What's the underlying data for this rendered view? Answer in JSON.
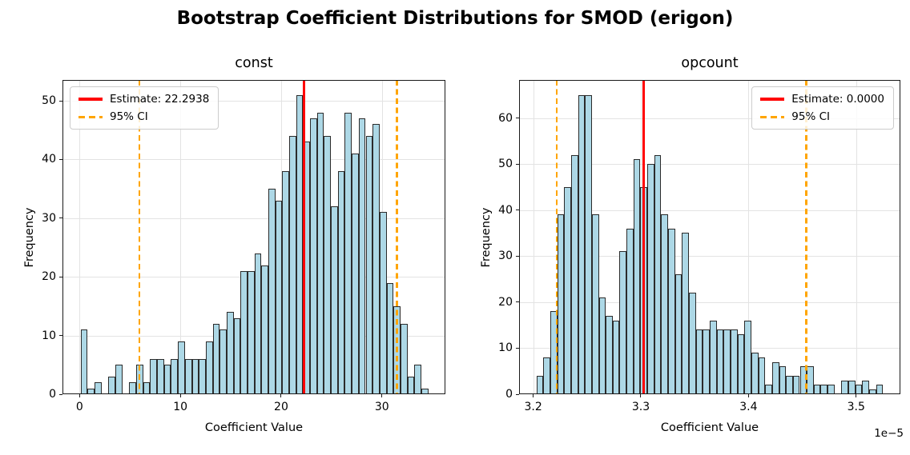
{
  "figure": {
    "title": "Bootstrap Coefficient Distributions for SMOD (erigon)"
  },
  "colors": {
    "bar_fill": "#ADD8E6",
    "bar_edge": "#2b2b2b",
    "estimate_line": "#ff0000",
    "ci_line": "#FFA500",
    "grid": "#e3e3e3",
    "tick": "#1a1a1a"
  },
  "chart_data": [
    {
      "type": "bar",
      "subtype": "histogram",
      "title": "const",
      "xlabel": "Coefficient Value",
      "ylabel": "Frequency",
      "legend": {
        "estimate_label": "Estimate: 22.2938",
        "ci_label": "95% CI",
        "position": "upper left"
      },
      "estimate": 22.2938,
      "ci": [
        5.95,
        31.5
      ],
      "bin_start": 0.1,
      "bin_width": 0.69,
      "values": [
        11,
        1,
        2,
        0,
        3,
        5,
        0,
        2,
        5,
        2,
        6,
        6,
        5,
        6,
        9,
        6,
        6,
        6,
        9,
        12,
        11,
        14,
        13,
        21,
        21,
        24,
        22,
        35,
        33,
        38,
        44,
        51,
        43,
        47,
        48,
        44,
        32,
        38,
        48,
        41,
        47,
        44,
        46,
        31,
        19,
        15,
        12,
        3,
        5,
        1
      ],
      "xlim": [
        -1.7,
        36.3
      ],
      "ylim": [
        0,
        53.55
      ],
      "xticks": [
        0,
        10,
        20,
        30
      ],
      "xtick_labels": [
        "0",
        "10",
        "20",
        "30"
      ],
      "yticks": [
        0,
        10,
        20,
        30,
        40,
        50
      ],
      "ytick_labels": [
        "0",
        "10",
        "20",
        "30",
        "40",
        "50"
      ],
      "grid": true
    },
    {
      "type": "bar",
      "subtype": "histogram",
      "title": "opcount",
      "xlabel": "Coefficient Value",
      "ylabel": "Frequency",
      "legend": {
        "estimate_label": "Estimate: 0.0000",
        "ci_label": "95% CI",
        "position": "upper right"
      },
      "estimate": 3.3025,
      "ci": [
        3.222,
        3.4535
      ],
      "bin_start": 3.203,
      "bin_width": 0.00644,
      "values": [
        4,
        8,
        18,
        39,
        45,
        52,
        65,
        65,
        39,
        21,
        17,
        16,
        31,
        36,
        51,
        45,
        50,
        52,
        39,
        36,
        26,
        35,
        22,
        14,
        14,
        16,
        14,
        14,
        14,
        13,
        16,
        9,
        8,
        2,
        7,
        6,
        4,
        4,
        6,
        6,
        2,
        2,
        2,
        0,
        3,
        3,
        2,
        3,
        1,
        2
      ],
      "xlim": [
        3.1869,
        3.5411
      ],
      "ylim": [
        0,
        68.25
      ],
      "xticks": [
        3.2,
        3.3,
        3.4,
        3.5
      ],
      "xtick_labels": [
        "3.2",
        "3.3",
        "3.4",
        "3.5"
      ],
      "yticks": [
        0,
        10,
        20,
        30,
        40,
        50,
        60
      ],
      "ytick_labels": [
        "0",
        "10",
        "20",
        "30",
        "40",
        "50",
        "60"
      ],
      "offset_label": "1e−5",
      "grid": true
    }
  ]
}
